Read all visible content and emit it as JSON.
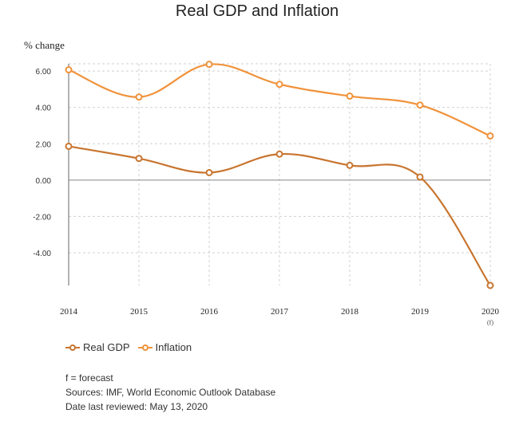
{
  "chart_data": {
    "type": "line",
    "title": "Real GDP and Inflation",
    "ylabel": "% change",
    "xlabel": "",
    "categories": [
      "2014",
      "2015",
      "2016",
      "2017",
      "2018",
      "2019",
      "2020"
    ],
    "category_sub": [
      "",
      "",
      "",
      "",
      "",
      "",
      "(f)"
    ],
    "ylim": [
      -5.8,
      6.4
    ],
    "yticks": [
      -4.0,
      -2.0,
      0.0,
      2.0,
      4.0,
      6.0
    ],
    "ytick_labels": [
      "-4.00",
      "-2.00",
      "0.00",
      "2.00",
      "4.00",
      "6.00"
    ],
    "grid": true,
    "legend_position": "bottom-left",
    "series": [
      {
        "name": "Real GDP",
        "color": "#c8752f",
        "values": [
          1.86,
          1.19,
          0.41,
          1.43,
          0.81,
          0.17,
          -5.8
        ]
      },
      {
        "name": "Inflation",
        "color": "#f0923a",
        "values": [
          6.07,
          4.57,
          6.37,
          5.27,
          4.62,
          4.13,
          2.43
        ]
      }
    ]
  },
  "notes": {
    "line1": "f = forecast",
    "line2": "Sources: IMF, World Economic Outlook Database",
    "line3": "Date last reviewed: May 13, 2020"
  }
}
